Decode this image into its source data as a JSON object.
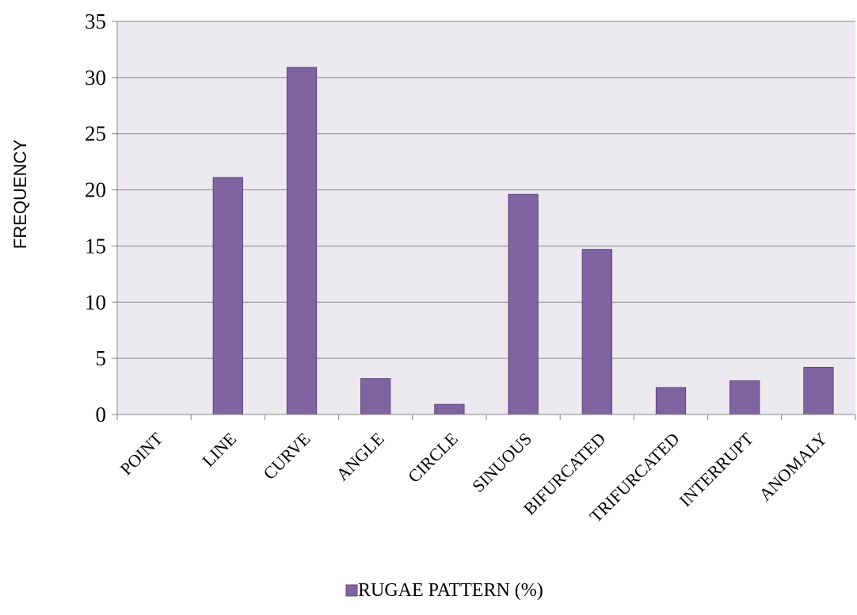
{
  "chart_data": {
    "type": "bar",
    "title": "",
    "xlabel": "",
    "ylabel": "FREQUENCY",
    "ylim": [
      0,
      35
    ],
    "ytick_step": 5,
    "yticks": [
      "0",
      "5",
      "10",
      "15",
      "20",
      "25",
      "30",
      "35"
    ],
    "grid": true,
    "legend_position": "bottom",
    "categories": [
      "POINT",
      "LINE",
      "CURVE",
      "ANGLE",
      "CIRCLE",
      "SINUOUS",
      "BIFURCATED",
      "TRIFURCATED",
      "INTERRUPT",
      "ANOMALY"
    ],
    "series": [
      {
        "name": "RUGAE PATTERN (%)",
        "values": [
          0,
          21.1,
          30.9,
          3.2,
          0.9,
          19.6,
          14.7,
          2.4,
          3.0,
          4.2
        ],
        "color": "#8064a2",
        "edge_color": "#5c4580"
      }
    ],
    "plot_background": "#ece9ef",
    "grid_color": "#868686"
  }
}
